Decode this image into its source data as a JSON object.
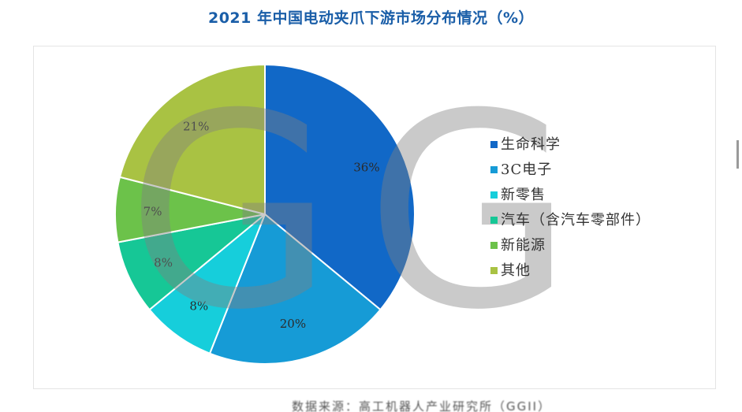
{
  "chart_data": {
    "type": "pie",
    "title": "2021 年中国电动夹爪下游市场分布情况（%）",
    "categories": [
      "生命科学",
      "3C电子",
      "新零售",
      "汽车（含汽车零部件）",
      "新能源",
      "其他"
    ],
    "values": [
      36,
      20,
      8,
      8,
      7,
      21
    ],
    "data_labels": [
      "36%",
      "20%",
      "8%",
      "8%",
      "7%",
      "21%"
    ],
    "colors": [
      "#1168c7",
      "#169bd6",
      "#16cedb",
      "#16c796",
      "#6cc24a",
      "#a9c243"
    ],
    "start_angle": "12 o'clock",
    "direction": "clockwise",
    "legend_position": "right"
  },
  "watermark": "GGII",
  "source_note": "数据来源：高工机器人产业研究所（GGII）"
}
